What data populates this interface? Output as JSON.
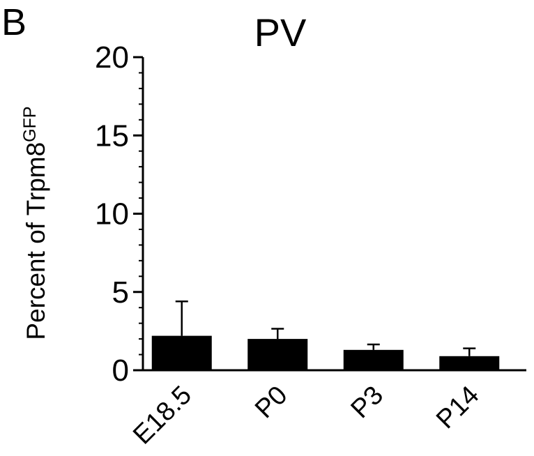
{
  "panel_label": "B",
  "chart_data": {
    "type": "bar",
    "title": "PV",
    "ylabel_main": "Percent of Trpm8",
    "ylabel_sup": "GFP",
    "xlabel": "",
    "categories": [
      "E18.5",
      "P0",
      "P3",
      "P14"
    ],
    "values": [
      2.2,
      2.0,
      1.3,
      0.9
    ],
    "errors": [
      2.2,
      0.65,
      0.35,
      0.5
    ],
    "ylim": [
      0,
      20
    ],
    "yticks": [
      0,
      5,
      10,
      15,
      20
    ],
    "ytick_labels": [
      "0",
      "5",
      "10",
      "15",
      "20"
    ],
    "grid": false,
    "bar_color": "#000000"
  }
}
